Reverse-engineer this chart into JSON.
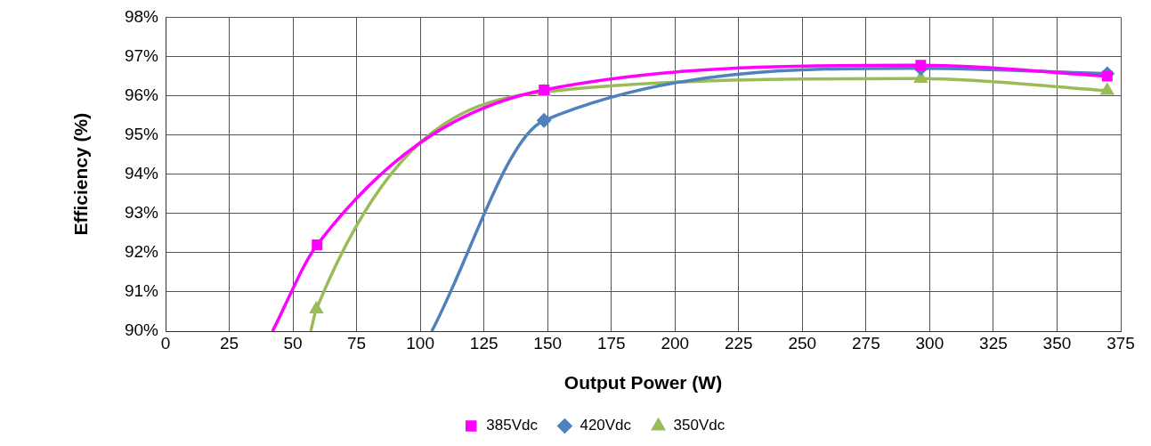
{
  "chart_data": {
    "type": "line",
    "xlabel": "Output Power (W)",
    "ylabel": "Efficiency (%)",
    "series": [
      {
        "name": "385Vdc",
        "color": "#ff00ff",
        "marker": "square",
        "x": [
          42,
          59.5,
          148.6,
          296.5,
          369.7
        ],
        "values": [
          90,
          92.2,
          96.15,
          96.78,
          96.5
        ]
      },
      {
        "name": "420Vdc",
        "color": "#4f81bd",
        "marker": "diamond",
        "x": [
          104.5,
          148.6,
          296.5,
          369.7
        ],
        "values": [
          90,
          95.37,
          96.7,
          96.56
        ]
      },
      {
        "name": "350Vdc",
        "color": "#9bbb59",
        "marker": "triangle",
        "x": [
          57,
          59.2,
          148.6,
          296.5,
          369.7
        ],
        "values": [
          90,
          90.56,
          96.1,
          96.44,
          96.13
        ]
      }
    ],
    "xlim": [
      0,
      375
    ],
    "xticks": [
      0,
      25,
      50,
      75,
      100,
      125,
      150,
      175,
      200,
      225,
      250,
      275,
      300,
      325,
      350,
      375
    ],
    "ylim": [
      90,
      98
    ],
    "yticks": [
      {
        "value": 90,
        "label": "90%"
      },
      {
        "value": 91,
        "label": "91%"
      },
      {
        "value": 92,
        "label": "92%"
      },
      {
        "value": 93,
        "label": "93%"
      },
      {
        "value": 94,
        "label": "94%"
      },
      {
        "value": 95,
        "label": "95%"
      },
      {
        "value": 96,
        "label": "96%"
      },
      {
        "value": 97,
        "label": "97%"
      },
      {
        "value": 98,
        "label": "98%"
      }
    ],
    "grid": true,
    "legend": "bottom",
    "line_style": "solid"
  }
}
